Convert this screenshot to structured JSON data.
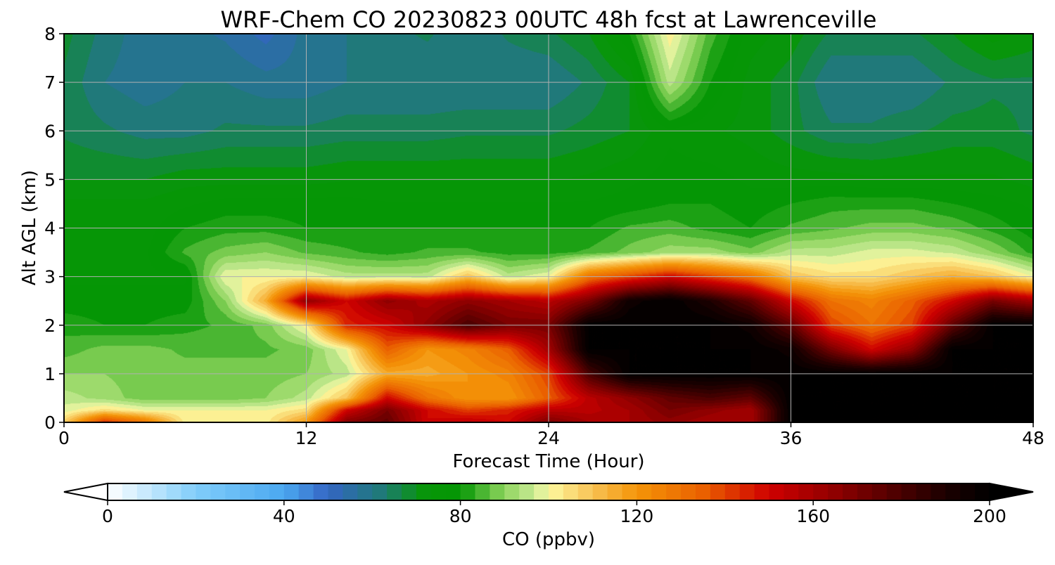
{
  "chart_data": {
    "type": "heatmap",
    "title": "WRF-Chem CO  20230823 00UTC 48h fcst at Lawrenceville",
    "xlabel": "Forecast Time (Hour)",
    "ylabel": "Alt AGL (km)",
    "xlim": [
      0,
      48
    ],
    "ylim": [
      0,
      8
    ],
    "xticks": [
      "0",
      "12",
      "24",
      "36",
      "48"
    ],
    "yticks": [
      "0",
      "1",
      "2",
      "3",
      "4",
      "5",
      "6",
      "7",
      "8"
    ],
    "grid": true,
    "colorbar": {
      "label": "CO  (ppbv)",
      "range": [
        0,
        200
      ],
      "ticks": [
        "0",
        "40",
        "80",
        "120",
        "160",
        "200"
      ],
      "extend": "both",
      "colors": [
        {
          "value": 0,
          "color": "#ffffff"
        },
        {
          "value": 20,
          "color": "#80cdfa"
        },
        {
          "value": 40,
          "color": "#4ba8f0"
        },
        {
          "value": 50,
          "color": "#3465c4"
        },
        {
          "value": 62,
          "color": "#1f7a78"
        },
        {
          "value": 72,
          "color": "#079607"
        },
        {
          "value": 80,
          "color": "#059605"
        },
        {
          "value": 90,
          "color": "#8fd55e"
        },
        {
          "value": 97,
          "color": "#cbec98"
        },
        {
          "value": 100,
          "color": "#fdf9a0"
        },
        {
          "value": 110,
          "color": "#f8c254"
        },
        {
          "value": 120,
          "color": "#f49508"
        },
        {
          "value": 135,
          "color": "#ea6000"
        },
        {
          "value": 150,
          "color": "#cf0000"
        },
        {
          "value": 165,
          "color": "#8f0000"
        },
        {
          "value": 180,
          "color": "#480000"
        },
        {
          "value": 190,
          "color": "#1c0000"
        },
        {
          "value": 200,
          "color": "#000000"
        }
      ]
    },
    "x": [
      0,
      2,
      4,
      6,
      8,
      10,
      12,
      14,
      16,
      18,
      20,
      22,
      24,
      26,
      28,
      30,
      32,
      34,
      36,
      38,
      40,
      42,
      44,
      46,
      48
    ],
    "y": [
      0,
      0.25,
      0.5,
      1,
      1.5,
      2,
      2.5,
      3,
      3.5,
      4,
      4.5,
      5,
      6,
      7,
      8
    ],
    "z": [
      [
        108,
        145,
        130,
        102,
        102,
        102,
        120,
        168,
        175,
        150,
        155,
        150,
        170,
        160,
        160,
        165,
        160,
        160,
        200,
        200,
        200,
        200,
        200,
        200,
        200
      ],
      [
        98,
        105,
        100,
        100,
        100,
        100,
        105,
        150,
        170,
        150,
        140,
        145,
        155,
        155,
        160,
        170,
        165,
        160,
        200,
        200,
        200,
        200,
        200,
        200,
        200
      ],
      [
        95,
        92,
        88,
        88,
        88,
        90,
        95,
        110,
        150,
        130,
        120,
        120,
        135,
        155,
        165,
        175,
        180,
        175,
        200,
        200,
        200,
        200,
        200,
        200,
        200
      ],
      [
        90,
        90,
        88,
        88,
        88,
        88,
        90,
        95,
        115,
        115,
        120,
        125,
        140,
        180,
        200,
        200,
        200,
        200,
        200,
        200,
        200,
        200,
        200,
        200,
        200
      ],
      [
        85,
        88,
        88,
        86,
        86,
        86,
        88,
        100,
        135,
        120,
        125,
        135,
        160,
        200,
        200,
        200,
        200,
        200,
        195,
        170,
        150,
        165,
        200,
        200,
        200
      ],
      [
        82,
        80,
        80,
        82,
        84,
        88,
        102,
        145,
        150,
        165,
        180,
        170,
        170,
        200,
        200,
        200,
        200,
        195,
        175,
        140,
        130,
        140,
        175,
        200,
        200
      ],
      [
        78,
        78,
        78,
        78,
        90,
        115,
        165,
        150,
        165,
        158,
        165,
        160,
        155,
        170,
        195,
        200,
        190,
        175,
        150,
        130,
        125,
        135,
        150,
        170,
        160
      ],
      [
        76,
        76,
        76,
        76,
        100,
        100,
        100,
        95,
        95,
        95,
        110,
        95,
        100,
        130,
        140,
        150,
        140,
        130,
        110,
        105,
        105,
        110,
        115,
        110,
        100
      ],
      [
        76,
        76,
        76,
        84,
        88,
        90,
        86,
        84,
        82,
        84,
        84,
        82,
        82,
        84,
        88,
        92,
        92,
        88,
        95,
        95,
        98,
        98,
        96,
        90,
        82
      ],
      [
        76,
        76,
        75,
        80,
        82,
        82,
        80,
        80,
        80,
        80,
        80,
        80,
        80,
        80,
        84,
        85,
        82,
        80,
        84,
        86,
        88,
        88,
        86,
        82,
        78
      ],
      [
        74,
        74,
        74,
        76,
        78,
        78,
        78,
        78,
        77,
        77,
        77,
        77,
        77,
        77,
        78,
        80,
        80,
        78,
        80,
        82,
        82,
        82,
        80,
        78,
        76
      ],
      [
        70,
        70,
        70,
        72,
        72,
        72,
        72,
        73,
        73,
        73,
        73,
        73,
        73,
        74,
        76,
        78,
        78,
        76,
        75,
        75,
        74,
        74,
        74,
        74,
        72
      ],
      [
        66,
        64,
        62,
        62,
        64,
        64,
        64,
        65,
        65,
        65,
        66,
        66,
        66,
        68,
        70,
        76,
        74,
        72,
        68,
        64,
        64,
        66,
        68,
        68,
        66
      ],
      [
        66,
        60,
        58,
        60,
        60,
        58,
        58,
        60,
        60,
        60,
        60,
        60,
        60,
        64,
        70,
        95,
        80,
        72,
        68,
        60,
        60,
        60,
        64,
        66,
        66
      ],
      [
        68,
        62,
        58,
        58,
        56,
        52,
        58,
        60,
        62,
        64,
        60,
        64,
        66,
        70,
        80,
        102,
        85,
        75,
        72,
        66,
        66,
        66,
        70,
        75,
        72
      ]
    ]
  }
}
